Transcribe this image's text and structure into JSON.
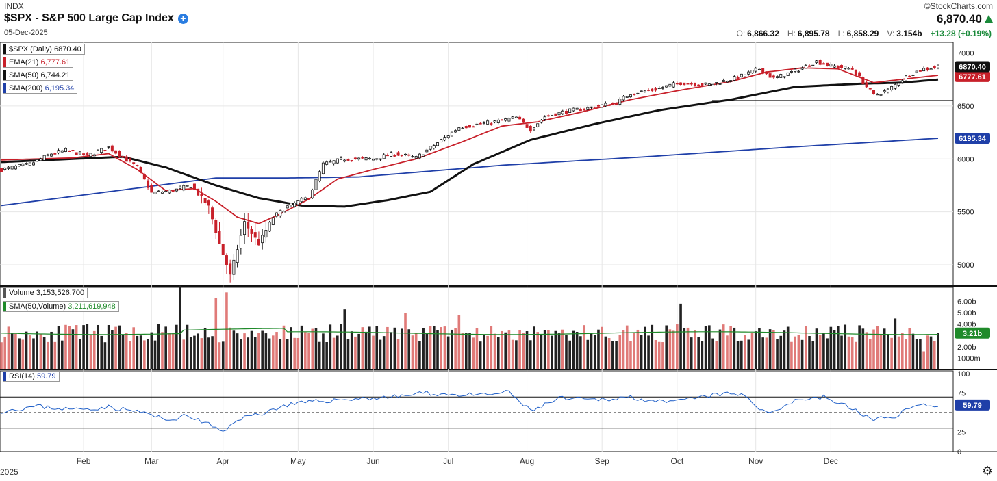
{
  "header": {
    "index_label": "INDX",
    "title": "$SPX - S&P 500 Large Cap Index",
    "date": "05-Dec-2025",
    "brand": "©StockCharts.com",
    "last_price": "6,870.40",
    "ohlc": {
      "o_label": "O:",
      "o": "6,866.32",
      "h_label": "H:",
      "h": "6,895.78",
      "l_label": "L:",
      "l": "6,858.29",
      "v_label": "V:",
      "v": "3.154b",
      "change": "+13.28 (+0.19%)"
    }
  },
  "legend": {
    "price": {
      "label": "$SPX (Daily)",
      "value": "6870.40"
    },
    "ema21": {
      "label": "EMA(21)",
      "value": "6,777.61"
    },
    "sma50": {
      "label": "SMA(50)",
      "value": "6,744.21"
    },
    "sma200": {
      "label": "SMA(200)",
      "value": "6,195.34"
    },
    "volume": {
      "label": "Volume",
      "value": "3,153,526,700"
    },
    "vol_sma50": {
      "label": "SMA(50,Volume)",
      "value": "3,211,619,948"
    },
    "rsi": {
      "label": "RSI(14)",
      "value": "59.79"
    }
  },
  "colors": {
    "up": "#111111",
    "down": "#c8202a",
    "ema": "#c8202a",
    "sma50": "#111111",
    "sma200": "#1f3fa8",
    "vol_up": "#222222",
    "vol_down": "#e07a78",
    "vol_sma": "#1f8a2a",
    "rsi": "#1f5fc8"
  },
  "chart_data": [
    {
      "type": "candlestick",
      "panel": "price",
      "y_ticks": [
        "7000",
        "6500",
        "6000",
        "5500",
        "5000"
      ],
      "y_tick_values": [
        7000,
        6500,
        6000,
        5500,
        5000
      ],
      "ylim": [
        4800,
        7100
      ],
      "price_tags": {
        "last": "6870.40",
        "ema": "6777.61",
        "sma200": "6195.34"
      },
      "support_level": 6550,
      "x_labels": [
        "Feb",
        "Mar",
        "Apr",
        "May",
        "Jun",
        "Jul",
        "Aug",
        "Sep",
        "Oct",
        "Nov",
        "Dec"
      ],
      "x_left_label": "2025",
      "anchors": [
        [
          0,
          5900
        ],
        [
          8,
          5950
        ],
        [
          14,
          6050
        ],
        [
          18,
          6080
        ],
        [
          24,
          6030
        ],
        [
          30,
          6110
        ],
        [
          38,
          5920
        ],
        [
          42,
          5680
        ],
        [
          48,
          5700
        ],
        [
          53,
          5750
        ],
        [
          58,
          5550
        ],
        [
          61,
          5200
        ],
        [
          64,
          4900
        ],
        [
          68,
          5400
        ],
        [
          72,
          5200
        ],
        [
          76,
          5450
        ],
        [
          80,
          5550
        ],
        [
          86,
          5640
        ],
        [
          90,
          5950
        ],
        [
          96,
          6000
        ],
        [
          104,
          6000
        ],
        [
          110,
          6050
        ],
        [
          116,
          6010
        ],
        [
          124,
          6200
        ],
        [
          128,
          6300
        ],
        [
          138,
          6350
        ],
        [
          144,
          6390
        ],
        [
          148,
          6280
        ],
        [
          152,
          6400
        ],
        [
          158,
          6450
        ],
        [
          164,
          6480
        ],
        [
          172,
          6530
        ],
        [
          176,
          6620
        ],
        [
          182,
          6650
        ],
        [
          190,
          6720
        ],
        [
          198,
          6700
        ],
        [
          206,
          6770
        ],
        [
          212,
          6850
        ],
        [
          216,
          6760
        ],
        [
          222,
          6830
        ],
        [
          228,
          6920
        ],
        [
          232,
          6880
        ],
        [
          238,
          6850
        ],
        [
          244,
          6600
        ],
        [
          248,
          6650
        ],
        [
          254,
          6800
        ],
        [
          258,
          6850
        ],
        [
          262,
          6870
        ]
      ],
      "ema21_path": [
        [
          0,
          5990
        ],
        [
          20,
          6010
        ],
        [
          30,
          6050
        ],
        [
          38,
          5900
        ],
        [
          46,
          5700
        ],
        [
          54,
          5720
        ],
        [
          60,
          5600
        ],
        [
          66,
          5450
        ],
        [
          72,
          5390
        ],
        [
          78,
          5480
        ],
        [
          86,
          5620
        ],
        [
          94,
          5810
        ],
        [
          104,
          5900
        ],
        [
          116,
          6000
        ],
        [
          128,
          6150
        ],
        [
          140,
          6310
        ],
        [
          150,
          6350
        ],
        [
          162,
          6440
        ],
        [
          176,
          6560
        ],
        [
          190,
          6650
        ],
        [
          204,
          6730
        ],
        [
          214,
          6820
        ],
        [
          224,
          6860
        ],
        [
          234,
          6850
        ],
        [
          244,
          6720
        ],
        [
          254,
          6760
        ],
        [
          262,
          6790
        ]
      ],
      "sma50_path": [
        [
          0,
          5970
        ],
        [
          20,
          6000
        ],
        [
          34,
          6020
        ],
        [
          46,
          5920
        ],
        [
          60,
          5750
        ],
        [
          72,
          5630
        ],
        [
          84,
          5560
        ],
        [
          96,
          5550
        ],
        [
          108,
          5610
        ],
        [
          120,
          5690
        ],
        [
          132,
          5950
        ],
        [
          148,
          6180
        ],
        [
          166,
          6330
        ],
        [
          184,
          6460
        ],
        [
          204,
          6560
        ],
        [
          222,
          6680
        ],
        [
          240,
          6710
        ],
        [
          252,
          6720
        ],
        [
          262,
          6750
        ]
      ],
      "sma200_path": [
        [
          0,
          5560
        ],
        [
          60,
          5820
        ],
        [
          80,
          5820
        ],
        [
          100,
          5830
        ],
        [
          140,
          5940
        ],
        [
          180,
          6020
        ],
        [
          220,
          6110
        ],
        [
          262,
          6195
        ]
      ]
    },
    {
      "type": "bar",
      "panel": "volume",
      "y_ticks": [
        "6.00b",
        "5.00b",
        "4.00b",
        "3.21b",
        "2.00b",
        "1000m"
      ],
      "y_tick_values": [
        6.0,
        5.0,
        4.0,
        3.21,
        2.0,
        1.0
      ],
      "ylim": [
        0,
        7.0
      ],
      "sma50_value": 3.21,
      "spikes": [
        [
          50,
          7.4
        ],
        [
          60,
          6.3
        ],
        [
          63,
          6.8
        ],
        [
          96,
          5.3
        ],
        [
          113,
          5.0
        ],
        [
          128,
          4.8
        ],
        [
          190,
          5.8
        ],
        [
          250,
          4.5
        ]
      ]
    },
    {
      "type": "line",
      "panel": "rsi",
      "y_ticks": [
        "100",
        "75",
        "59.79",
        "25",
        "0"
      ],
      "y_tick_values": [
        100,
        75,
        59.79,
        25,
        0
      ],
      "ylim": [
        0,
        100
      ],
      "levels": [
        70,
        50,
        30
      ],
      "anchors": [
        [
          0,
          52
        ],
        [
          10,
          58
        ],
        [
          20,
          54
        ],
        [
          30,
          57
        ],
        [
          40,
          50
        ],
        [
          46,
          40
        ],
        [
          52,
          46
        ],
        [
          58,
          35
        ],
        [
          62,
          24
        ],
        [
          66,
          42
        ],
        [
          72,
          48
        ],
        [
          80,
          60
        ],
        [
          90,
          65
        ],
        [
          100,
          68
        ],
        [
          110,
          70
        ],
        [
          118,
          75
        ],
        [
          126,
          73
        ],
        [
          134,
          72
        ],
        [
          142,
          76
        ],
        [
          148,
          52
        ],
        [
          156,
          68
        ],
        [
          166,
          66
        ],
        [
          176,
          70
        ],
        [
          186,
          62
        ],
        [
          196,
          70
        ],
        [
          202,
          74
        ],
        [
          208,
          72
        ],
        [
          214,
          48
        ],
        [
          222,
          66
        ],
        [
          230,
          70
        ],
        [
          238,
          55
        ],
        [
          244,
          40
        ],
        [
          250,
          46
        ],
        [
          254,
          56
        ],
        [
          258,
          60
        ],
        [
          262,
          59.79
        ]
      ]
    }
  ]
}
